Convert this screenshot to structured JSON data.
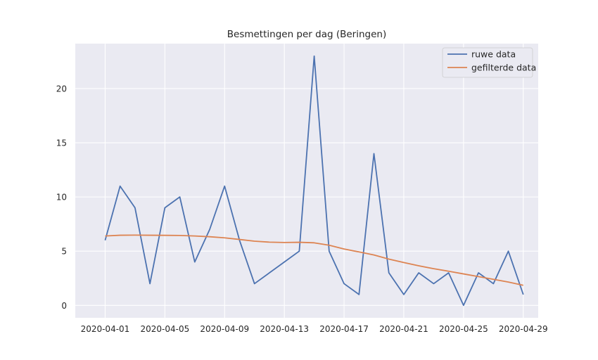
{
  "chart_data": {
    "type": "line",
    "title": "Besmettingen per dag (Beringen)",
    "xlabel": "",
    "ylabel": "",
    "x": [
      "2020-04-01",
      "2020-04-02",
      "2020-04-03",
      "2020-04-04",
      "2020-04-05",
      "2020-04-06",
      "2020-04-07",
      "2020-04-08",
      "2020-04-09",
      "2020-04-10",
      "2020-04-11",
      "2020-04-12",
      "2020-04-13",
      "2020-04-14",
      "2020-04-15",
      "2020-04-16",
      "2020-04-17",
      "2020-04-18",
      "2020-04-19",
      "2020-04-20",
      "2020-04-21",
      "2020-04-22",
      "2020-04-23",
      "2020-04-24",
      "2020-04-25",
      "2020-04-26",
      "2020-04-27",
      "2020-04-28",
      "2020-04-29"
    ],
    "x_ticks": [
      "2020-04-01",
      "2020-04-05",
      "2020-04-09",
      "2020-04-13",
      "2020-04-17",
      "2020-04-21",
      "2020-04-25",
      "2020-04-29"
    ],
    "y_ticks": [
      0,
      5,
      10,
      15,
      20
    ],
    "ylim": [
      -1.15,
      24.15
    ],
    "xlim": [
      "2020-03-30",
      "2020-04-30"
    ],
    "grid": true,
    "legend_position": "top-right",
    "series": [
      {
        "name": "ruwe data",
        "color": "#4c72b0",
        "values": [
          6,
          11,
          9,
          2,
          9,
          10,
          4,
          7,
          11,
          6,
          2,
          3,
          4,
          5,
          23,
          5,
          2,
          1,
          14,
          3,
          1,
          3,
          2,
          3,
          0,
          3,
          2,
          5,
          1
        ]
      },
      {
        "name": "gefilterde data",
        "color": "#dd8452",
        "values": [
          6.4,
          6.47,
          6.48,
          6.47,
          6.46,
          6.45,
          6.4,
          6.33,
          6.23,
          6.08,
          5.92,
          5.83,
          5.8,
          5.82,
          5.77,
          5.55,
          5.2,
          4.93,
          4.65,
          4.27,
          3.95,
          3.65,
          3.38,
          3.15,
          2.9,
          2.65,
          2.4,
          2.15,
          1.85
        ]
      }
    ]
  }
}
